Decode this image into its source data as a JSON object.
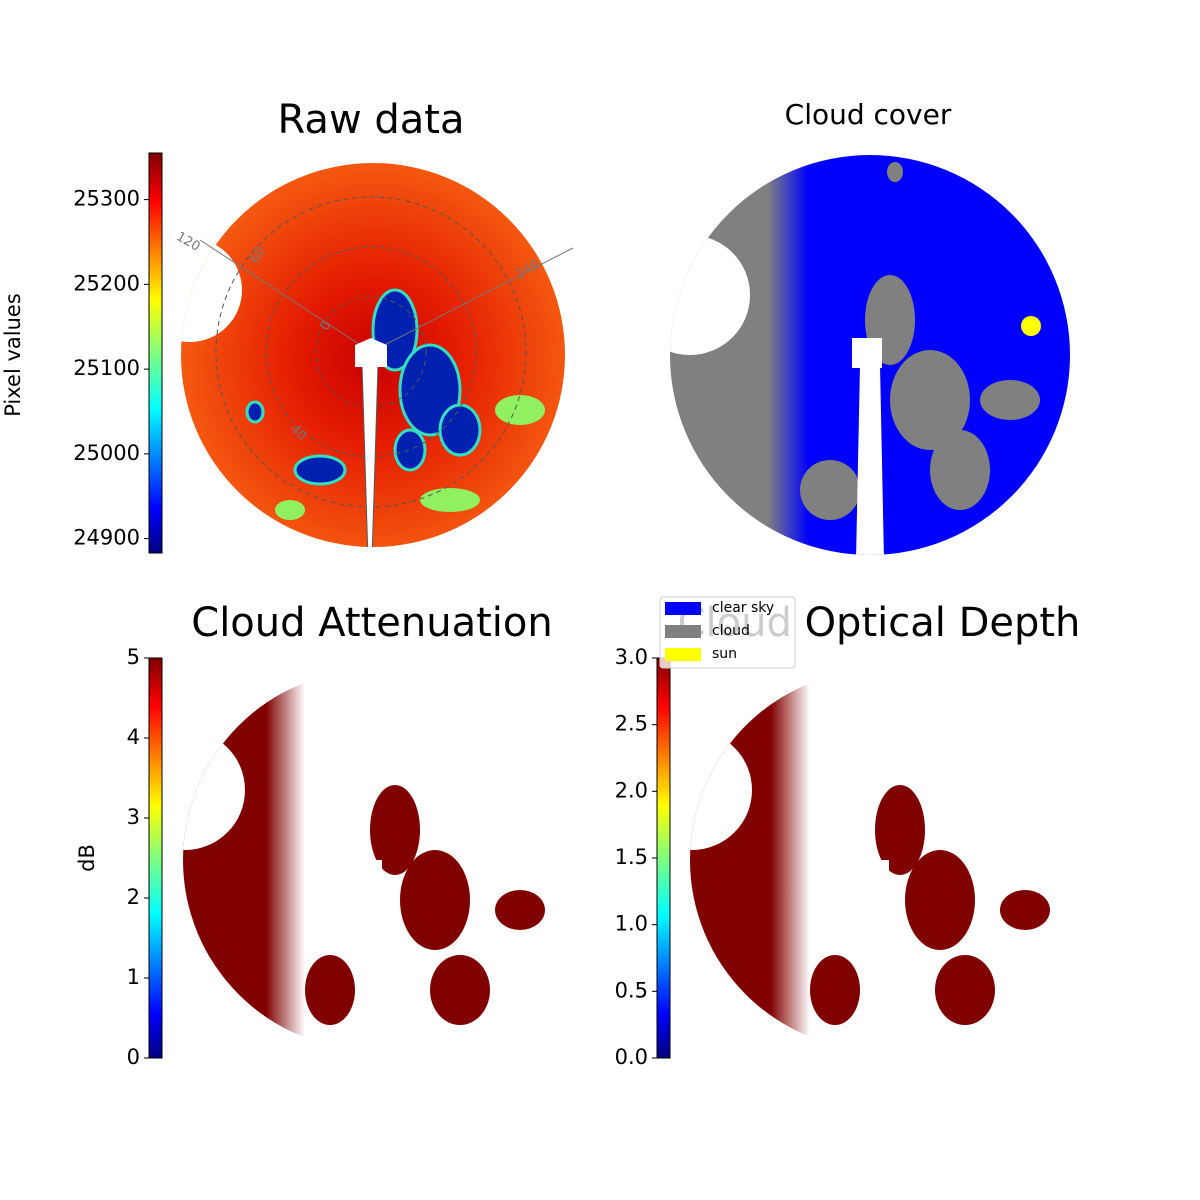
{
  "chart_data": [
    {
      "type": "image",
      "title": "Raw data",
      "ylabel": "Pixel values",
      "ylim": [
        24883,
        25355
      ],
      "yticks": [
        24900,
        25000,
        25100,
        25200,
        25300
      ],
      "annotations": [
        "120",
        "60",
        "240",
        "0",
        "40"
      ]
    },
    {
      "type": "image",
      "title": "Cloud cover",
      "series": [
        {
          "name": "clear sky",
          "color": "#0000ff"
        },
        {
          "name": "cloud",
          "color": "#808080"
        },
        {
          "name": "sun",
          "color": "#ffff00"
        }
      ]
    },
    {
      "type": "image",
      "title": "Cloud Attenuation",
      "ylabel": "dB",
      "ylim": [
        0,
        5
      ],
      "yticks": [
        0,
        1,
        2,
        3,
        4,
        5
      ]
    },
    {
      "type": "image",
      "title": "Cloud Optical Depth",
      "ylim": [
        0,
        3
      ],
      "yticks": [
        {
          "value": 0,
          "label": "0.0"
        },
        0.5,
        {
          "value": 1,
          "label": "1.0"
        },
        1.5,
        {
          "value": 2,
          "label": "2.0"
        },
        2.5,
        {
          "value": 3,
          "label": "3.0"
        }
      ]
    }
  ]
}
